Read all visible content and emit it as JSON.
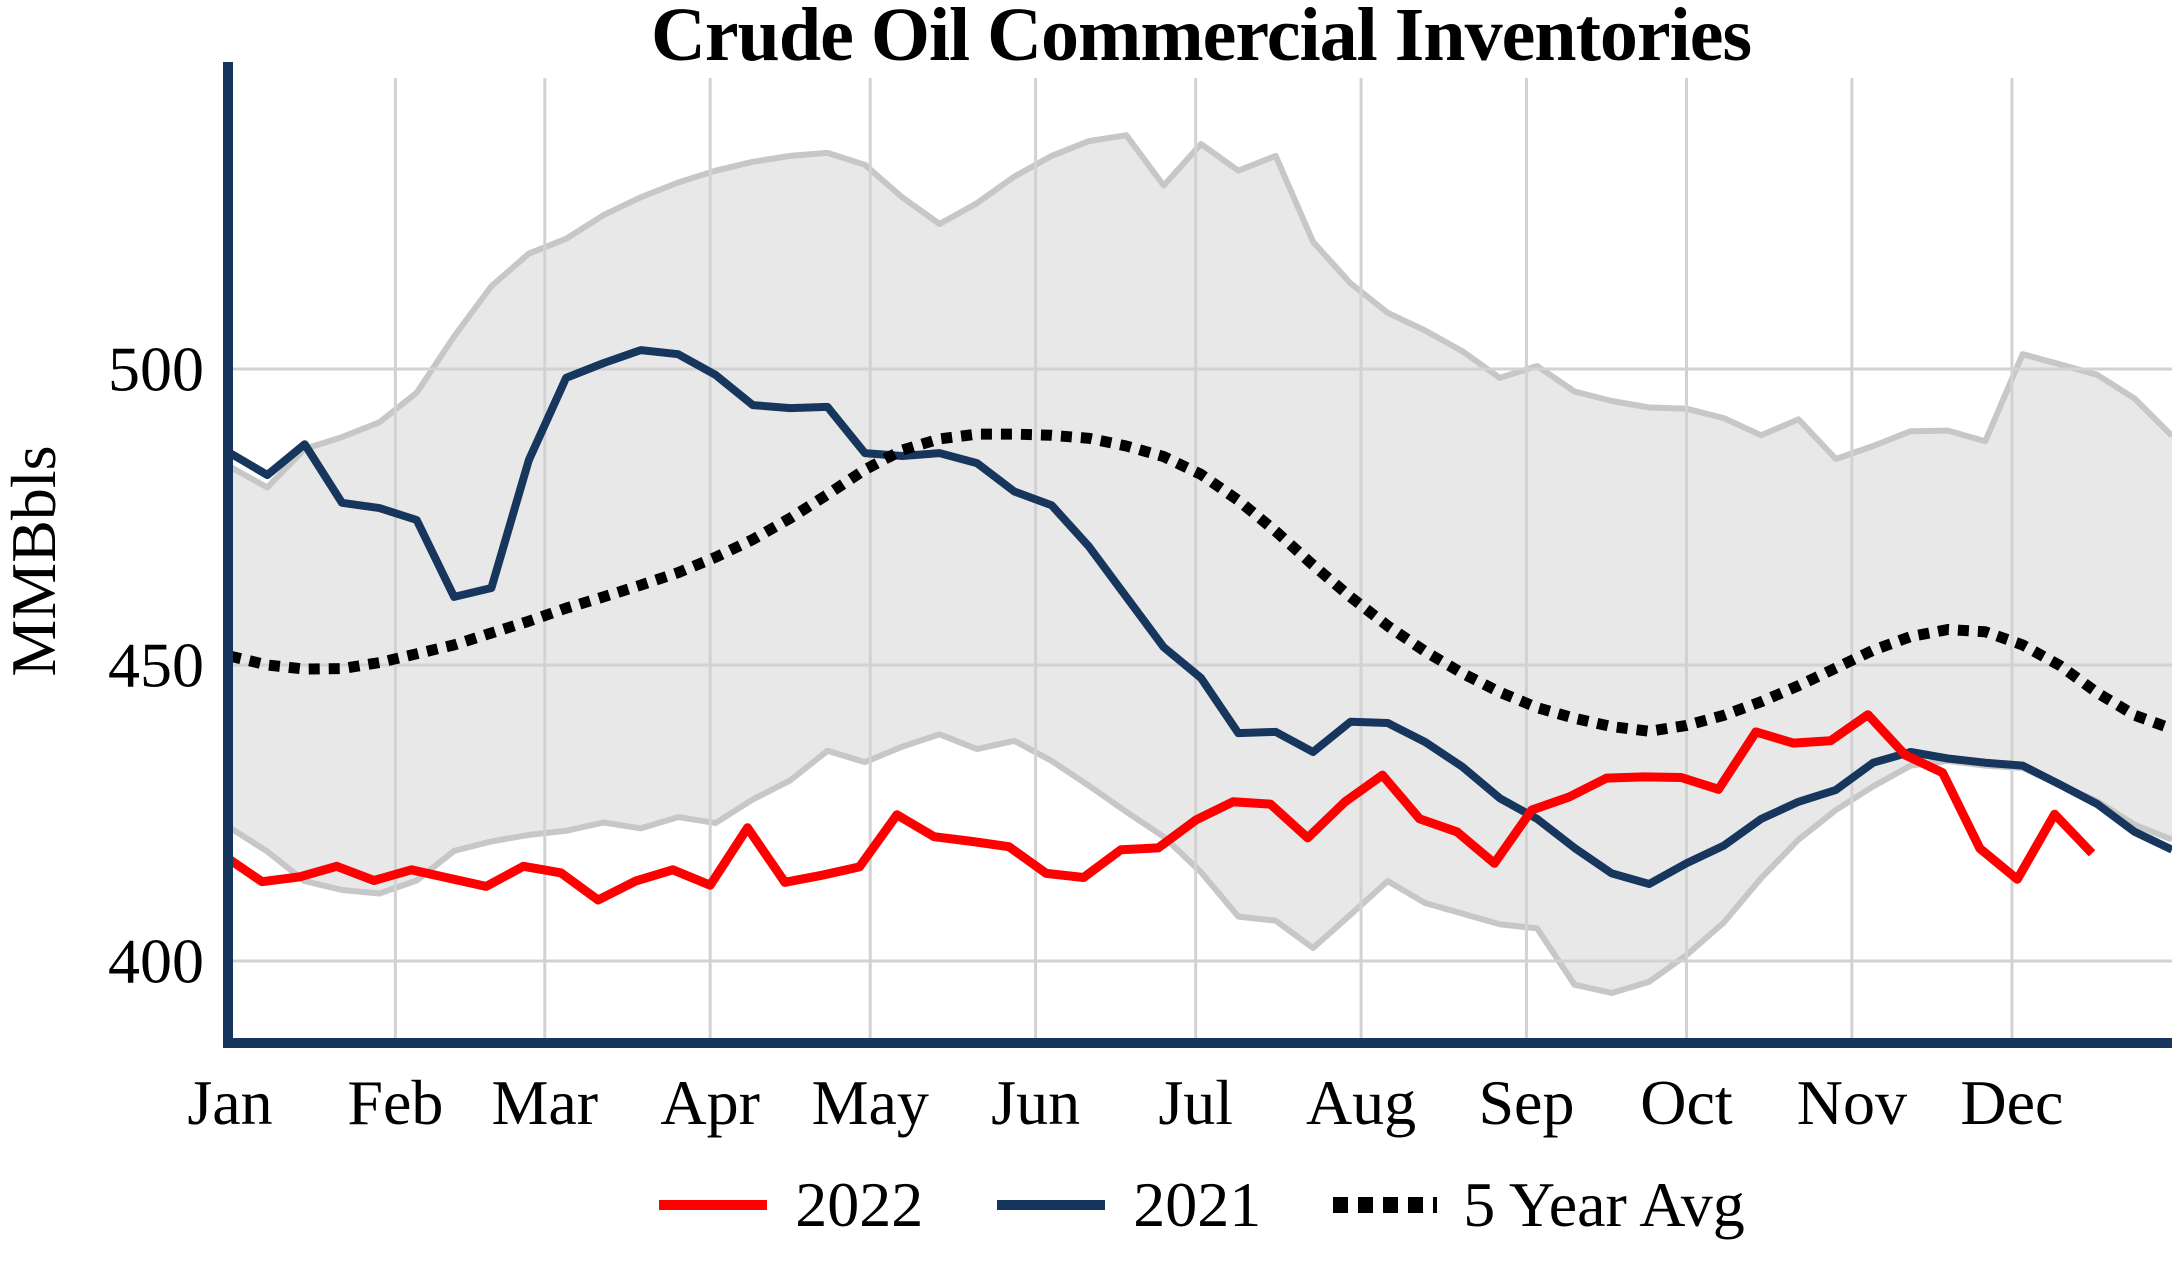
{
  "title": "Crude Oil Commercial Inventories",
  "y_axis": {
    "label": "MMBbls",
    "ticks": [
      400,
      450,
      500
    ]
  },
  "x_axis": {
    "months": [
      "Jan",
      "Feb",
      "Mar",
      "Apr",
      "May",
      "Jun",
      "Jul",
      "Aug",
      "Sep",
      "Oct",
      "Nov",
      "Dec"
    ]
  },
  "legend": [
    {
      "label": "2022",
      "color": "#FF0000",
      "style": "solid"
    },
    {
      "label": "2021",
      "color": "#17365D",
      "style": "solid"
    },
    {
      "label": "5 Year Avg",
      "color": "#000000",
      "style": "dotted"
    }
  ],
  "colors": {
    "axis_spine": "#17365D",
    "gridline": "#D2D2D2",
    "band_fill": "#E8E8E8",
    "band_edge": "#C7C7C7",
    "series_2022": "#FF0000",
    "series_2021": "#17365D",
    "series_5yr": "#000000",
    "text": "#000000",
    "background": "#FFFFFF"
  },
  "chart_data": {
    "type": "line",
    "title": "Crude Oil Commercial Inventories",
    "xlabel": "",
    "ylabel": "MMBbls",
    "x_unit": "day_of_year",
    "xlim_days": [
      0,
      364
    ],
    "ylim": [
      386,
      549
    ],
    "yticks": [
      400,
      450,
      500
    ],
    "grid": true,
    "legend_position": "bottom-center",
    "month_start_days": [
      0,
      31,
      59,
      90,
      120,
      151,
      181,
      212,
      243,
      273,
      304,
      334
    ],
    "band": {
      "name": "5-year range",
      "days": [
        0,
        7,
        14,
        21,
        28,
        35,
        42,
        49,
        56,
        63,
        70,
        77,
        84,
        91,
        98,
        105,
        112,
        119,
        126,
        133,
        140,
        147,
        154,
        161,
        168,
        175,
        182,
        189,
        196,
        203,
        210,
        217,
        224,
        231,
        238,
        245,
        252,
        259,
        266,
        273,
        280,
        287,
        294,
        301,
        308,
        315,
        322,
        329,
        336,
        343,
        350,
        357,
        364
      ],
      "upper": [
        483.5,
        480.0,
        486.5,
        488.5,
        491.0,
        496.0,
        505.5,
        514.0,
        519.5,
        522.0,
        526.0,
        529.0,
        531.5,
        533.5,
        535.0,
        536.0,
        536.5,
        534.5,
        529.0,
        524.5,
        528.0,
        532.5,
        536.0,
        538.5,
        539.5,
        531.0,
        538.0,
        533.5,
        536.0,
        521.5,
        514.5,
        509.5,
        506.5,
        503.0,
        498.5,
        500.5,
        496.2,
        494.6,
        493.5,
        493.3,
        491.7,
        488.8,
        491.5,
        484.8,
        487.0,
        489.5,
        489.6,
        487.8,
        502.5,
        500.8,
        499.0,
        495.0,
        488.7
      ],
      "lower": [
        422.5,
        418.5,
        413.5,
        412.0,
        411.4,
        413.6,
        418.6,
        420.2,
        421.3,
        422.0,
        423.4,
        422.4,
        424.3,
        423.3,
        427.3,
        430.5,
        435.5,
        433.6,
        436.2,
        438.3,
        435.8,
        437.2,
        433.8,
        429.6,
        425.2,
        421.0,
        415.0,
        407.5,
        406.8,
        402.2,
        407.8,
        413.5,
        409.8,
        408.0,
        406.2,
        405.5,
        396.0,
        394.6,
        396.5,
        401.0,
        406.5,
        414.0,
        420.5,
        425.5,
        429.5,
        433.0,
        433.8,
        433.0,
        432.6,
        429.8,
        427.0,
        423.0,
        420.5
      ]
    },
    "series": [
      {
        "name": "2021",
        "color": "#17365D",
        "width": 8,
        "dashed": false,
        "days": [
          0,
          7,
          14,
          21,
          28,
          35,
          42,
          49,
          56,
          63,
          70,
          77,
          84,
          91,
          98,
          105,
          112,
          119,
          126,
          133,
          140,
          147,
          154,
          161,
          168,
          175,
          182,
          189,
          196,
          203,
          210,
          217,
          224,
          231,
          238,
          245,
          252,
          259,
          266,
          273,
          280,
          287,
          294,
          301,
          308,
          315,
          322,
          329,
          336,
          343,
          350,
          357,
          364
        ],
        "values": [
          485.8,
          482.1,
          487.3,
          477.4,
          476.5,
          474.5,
          461.5,
          463.0,
          484.6,
          498.5,
          501.0,
          503.2,
          502.5,
          499.0,
          493.9,
          493.4,
          493.6,
          485.8,
          485.3,
          485.8,
          484.1,
          479.3,
          477.0,
          470.0,
          461.5,
          453.0,
          447.8,
          438.5,
          438.7,
          435.3,
          440.4,
          440.2,
          437.0,
          432.8,
          427.5,
          424.0,
          419.1,
          414.8,
          413.0,
          416.5,
          419.5,
          424.0,
          426.9,
          428.9,
          433.5,
          435.3,
          434.2,
          433.5,
          433.0,
          429.8,
          426.5,
          421.8,
          418.8
        ]
      },
      {
        "name": "2022",
        "color": "#FF0000",
        "width": 9,
        "dashed": false,
        "days": [
          0,
          6,
          13,
          20,
          27,
          34,
          41,
          48,
          55,
          62,
          69,
          76,
          83,
          90,
          97,
          104,
          111,
          118,
          125,
          132,
          139,
          146,
          153,
          160,
          167,
          174,
          181,
          188,
          195,
          202,
          209,
          216,
          223,
          230,
          237,
          244,
          251,
          258,
          265,
          272,
          279,
          286,
          293,
          300,
          307,
          314,
          321,
          328,
          335,
          342,
          349
        ],
        "values": [
          417.1,
          413.4,
          414.2,
          416.0,
          413.6,
          415.4,
          414.0,
          412.6,
          416.0,
          414.9,
          410.3,
          413.5,
          415.4,
          412.8,
          422.5,
          413.3,
          414.5,
          415.9,
          424.7,
          421.0,
          420.2,
          419.3,
          414.8,
          414.1,
          418.8,
          419.1,
          423.8,
          426.9,
          426.5,
          420.8,
          426.9,
          431.4,
          424.0,
          421.8,
          416.5,
          425.5,
          427.7,
          430.9,
          431.1,
          431.0,
          429.0,
          438.7,
          436.8,
          437.2,
          441.6,
          434.8,
          431.8,
          419.0,
          413.8,
          424.8,
          418.2
        ]
      },
      {
        "name": "5 Year Avg",
        "color": "#000000",
        "width": 11,
        "dashed": true,
        "days": [
          0,
          7,
          14,
          21,
          28,
          35,
          42,
          49,
          56,
          63,
          70,
          77,
          84,
          91,
          98,
          105,
          112,
          119,
          126,
          133,
          140,
          147,
          154,
          161,
          168,
          175,
          182,
          189,
          196,
          203,
          210,
          217,
          224,
          231,
          238,
          245,
          252,
          259,
          266,
          273,
          280,
          287,
          294,
          301,
          308,
          315,
          322,
          329,
          336,
          343,
          350,
          357,
          364
        ],
        "values": [
          451.5,
          450.0,
          449.3,
          449.4,
          450.4,
          451.9,
          453.4,
          455.4,
          457.4,
          459.6,
          461.5,
          463.5,
          465.6,
          468.2,
          471.2,
          474.8,
          478.8,
          483.0,
          486.3,
          488.2,
          489.0,
          489.0,
          488.8,
          488.3,
          487.0,
          485.2,
          482.2,
          477.8,
          472.6,
          466.9,
          461.5,
          456.6,
          452.3,
          448.6,
          445.4,
          442.8,
          441.0,
          439.6,
          438.8,
          439.8,
          441.5,
          443.8,
          446.5,
          449.5,
          452.5,
          454.8,
          456.0,
          455.6,
          453.4,
          449.9,
          445.3,
          441.5,
          439.2
        ]
      }
    ]
  }
}
